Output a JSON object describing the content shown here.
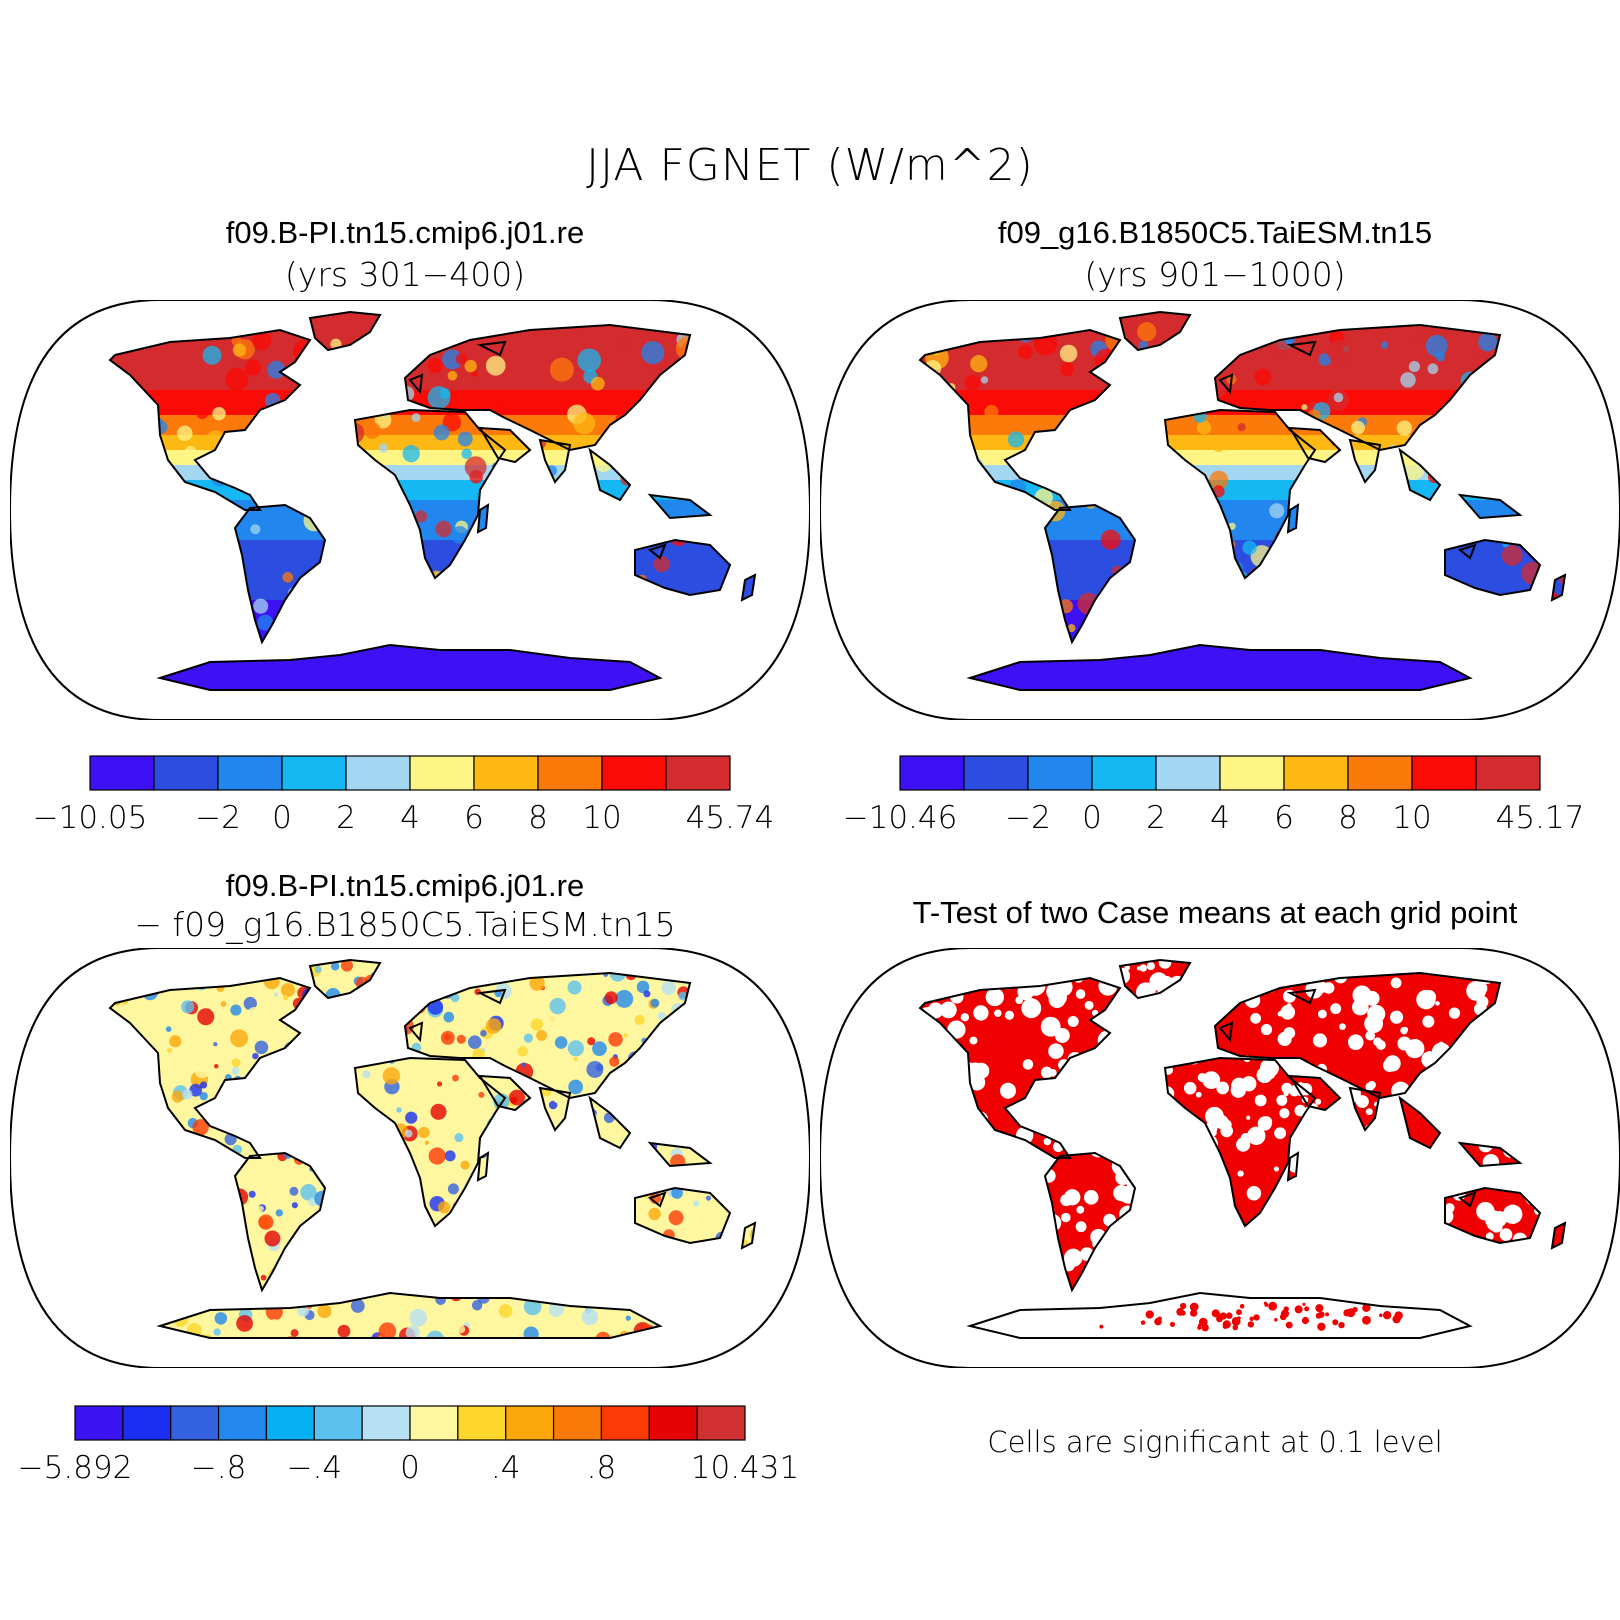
{
  "title": "JJA FGNET (W/m^2)",
  "panels": [
    {
      "title": "f09.B-PI.tn15.cmip6.j01.re",
      "subtitle": "(yrs 301−400)"
    },
    {
      "title": "f09_g16.B1850C5.TaiESM.tn15",
      "subtitle": "(yrs 901−1000)"
    },
    {
      "title": "f09.B-PI.tn15.cmip6.j01.re",
      "subtitle": "− f09_g16.B1850C5.TaiESM.tn15"
    },
    {
      "title": "T-Test of two Case means at each grid point",
      "subtitle": ""
    }
  ],
  "colorbars": [
    {
      "colors": [
        "#3d11f4",
        "#2b4de0",
        "#2186ee",
        "#15b8f2",
        "#a3d6f1",
        "#fff585",
        "#fdb813",
        "#fc7a09",
        "#fb0b05",
        "#d42b2e"
      ],
      "labels": [
        "−10.05",
        "−2",
        "0",
        "2",
        "4",
        "6",
        "8",
        "10",
        "45.74"
      ]
    },
    {
      "colors": [
        "#3d11f4",
        "#2b4de0",
        "#2186ee",
        "#15b8f2",
        "#a3d6f1",
        "#fff585",
        "#fdb813",
        "#fc7a09",
        "#fb0b05",
        "#d42b2e"
      ],
      "labels": [
        "−10.46",
        "−2",
        "0",
        "2",
        "4",
        "6",
        "8",
        "10",
        "45.17"
      ]
    },
    {
      "colors": [
        "#3b14f4",
        "#1b2ff2",
        "#3462e0",
        "#2288ee",
        "#07b0f3",
        "#5cc1ef",
        "#b7e0f2",
        "#fff7a0",
        "#fdd62c",
        "#fca70b",
        "#fb7a0a",
        "#fb3a06",
        "#e50303",
        "#d0302f"
      ],
      "labels": [
        "−5.892",
        "−.8",
        "−.4",
        "0",
        ".4",
        ".8",
        "10.431"
      ]
    }
  ],
  "significance_note": "Cells are significant at 0.1 level",
  "map_colors": {
    "significant": "#f00000",
    "outline": "#000000"
  }
}
